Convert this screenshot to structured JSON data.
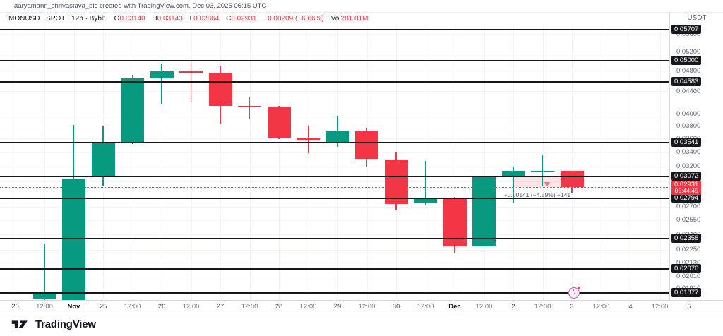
{
  "attribution": "aaryamann_shrivastava_bic created with TradingView.com, Dec 03, 2025 06:15 UTC",
  "legend": {
    "title": "MONUSDT SPOT · 12h · Bybit",
    "o_label": "O",
    "o_value": "0.03140",
    "h_label": "H",
    "h_value": "0.03143",
    "l_label": "L",
    "l_value": "0.02864",
    "c_label": "C",
    "c_value": "0.02931",
    "change": "−0.00209 (−6.66%)",
    "vol_label": "Vol",
    "vol_value": "281.01M"
  },
  "price_axis": {
    "currency": "USDT",
    "ticks": [
      {
        "label": "0.05600",
        "value": 0.056
      },
      {
        "label": "0.05200",
        "value": 0.052
      },
      {
        "label": "0.04800",
        "value": 0.048
      },
      {
        "label": "0.04400",
        "value": 0.044
      },
      {
        "label": "0.04000",
        "value": 0.04
      },
      {
        "label": "0.03800",
        "value": 0.038
      },
      {
        "label": "0.03600",
        "value": 0.036
      },
      {
        "label": "0.03400",
        "value": 0.034
      },
      {
        "label": "0.03200",
        "value": 0.032
      },
      {
        "label": "0.03000",
        "value": 0.03
      },
      {
        "label": "0.02700",
        "value": 0.027
      },
      {
        "label": "0.02550",
        "value": 0.0255
      },
      {
        "label": "0.02400",
        "value": 0.024
      },
      {
        "label": "0.02250",
        "value": 0.0225
      },
      {
        "label": "0.02130",
        "value": 0.0213
      },
      {
        "label": "0.02010",
        "value": 0.0201
      },
      {
        "label": "0.01910",
        "value": 0.0191
      }
    ],
    "levels": [
      {
        "label": "0.05707",
        "value": 0.05707
      },
      {
        "label": "0.05000",
        "value": 0.05
      },
      {
        "label": "0.04583",
        "value": 0.04583
      },
      {
        "label": "0.03541",
        "value": 0.03541
      },
      {
        "label": "0.03072",
        "value": 0.03072
      },
      {
        "label": "0.02794",
        "value": 0.02794
      },
      {
        "label": "0.02358",
        "value": 0.02358
      },
      {
        "label": "0.02076",
        "value": 0.02076
      },
      {
        "label": "0.01877",
        "value": 0.01877
      }
    ],
    "current": {
      "label": "0.02931",
      "countdown": "05:44:45",
      "value": 0.02931
    }
  },
  "chart_data": {
    "type": "candlestick",
    "symbol": "MONUSDT SPOT",
    "exchange": "Bybit",
    "interval": "12h",
    "scale": "logarithmic",
    "visible_price_range": [
      0.0181,
      0.0593
    ],
    "last_price": 0.02931,
    "horizontal_levels": [
      0.05707,
      0.05,
      0.04583,
      0.03541,
      0.03072,
      0.02794,
      0.02358,
      0.02076,
      0.01877
    ],
    "bars": [
      {
        "t": "20"
      },
      {
        "t": "12:00",
        "o": 0.0183,
        "h": 0.0231,
        "l": 0.0182,
        "c": 0.0188
      },
      {
        "t": "Nov",
        "month": true,
        "o": 0.0182,
        "h": 0.0382,
        "l": 0.0181,
        "c": 0.0304
      },
      {
        "t": "25",
        "o": 0.0306,
        "h": 0.0379,
        "l": 0.0295,
        "c": 0.0354
      },
      {
        "t": "12:00",
        "o": 0.0354,
        "h": 0.0472,
        "l": 0.0352,
        "c": 0.0464
      },
      {
        "t": "26",
        "o": 0.0464,
        "h": 0.0494,
        "l": 0.0416,
        "c": 0.0478
      },
      {
        "t": "12:00",
        "o": 0.0478,
        "h": 0.0498,
        "l": 0.0422,
        "c": 0.0476
      },
      {
        "t": "27",
        "o": 0.0475,
        "h": 0.0489,
        "l": 0.0384,
        "c": 0.0413
      },
      {
        "t": "12:00",
        "o": 0.0413,
        "h": 0.0428,
        "l": 0.0392,
        "c": 0.0411
      },
      {
        "t": "28",
        "o": 0.0412,
        "h": 0.0414,
        "l": 0.0359,
        "c": 0.0361
      },
      {
        "t": "12:00",
        "o": 0.036,
        "h": 0.038,
        "l": 0.0338,
        "c": 0.0357
      },
      {
        "t": "29",
        "o": 0.0354,
        "h": 0.0395,
        "l": 0.0348,
        "c": 0.0371
      },
      {
        "t": "12:00",
        "o": 0.0371,
        "h": 0.0377,
        "l": 0.032,
        "c": 0.033
      },
      {
        "t": "30",
        "o": 0.033,
        "h": 0.034,
        "l": 0.0266,
        "c": 0.0273
      },
      {
        "t": "12:00",
        "o": 0.0274,
        "h": 0.0328,
        "l": 0.0272,
        "c": 0.028
      },
      {
        "t": "Dec",
        "month": true,
        "o": 0.0279,
        "h": 0.0281,
        "l": 0.0222,
        "c": 0.0228
      },
      {
        "t": "12:00",
        "o": 0.0228,
        "h": 0.0307,
        "l": 0.0224,
        "c": 0.0307
      },
      {
        "t": "2",
        "o": 0.0307,
        "h": 0.032,
        "l": 0.0274,
        "c": 0.0314
      },
      {
        "t": "12:00",
        "o": 0.0313,
        "h": 0.0336,
        "l": 0.0295,
        "c": 0.0314
      },
      {
        "t": "3",
        "o": 0.0314,
        "h": 0.03143,
        "l": 0.02864,
        "c": 0.02931
      },
      {
        "t": "12:00"
      },
      {
        "t": "4"
      },
      {
        "t": "12:00"
      },
      {
        "t": "5"
      }
    ]
  },
  "range_tool": {
    "label": "−0.00141 (−4.59%) −141",
    "from_price": 0.03072,
    "to_price": 0.02931
  },
  "event_marker": {
    "glyph": "ϟ"
  },
  "footer": {
    "brand": "TradingView"
  },
  "colors": {
    "up": "#089981",
    "down": "#f23645",
    "level": "#16181d",
    "current": "#f23645",
    "grid": "#f2f4f9",
    "axis_text": "#676a75",
    "dark_text": "#131722"
  }
}
